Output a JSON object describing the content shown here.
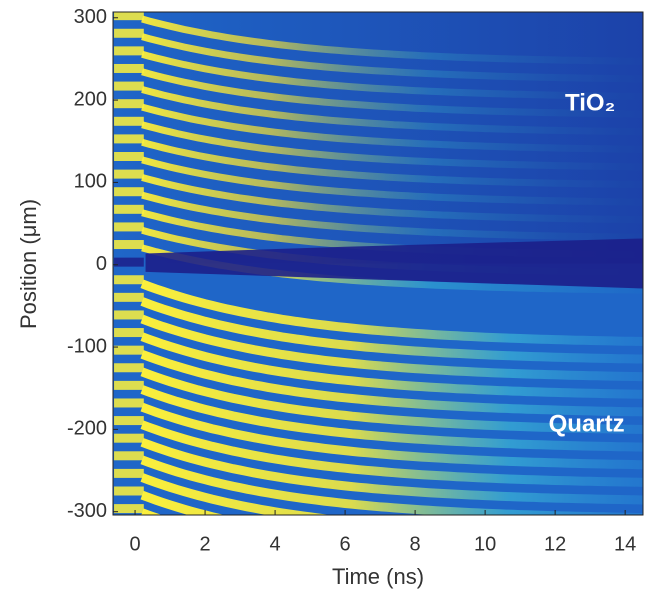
{
  "chart_data": {
    "type": "image",
    "xlabel": "Time (ns)",
    "ylabel": "Position (μm)",
    "xlim": [
      -0.63,
      14.51
    ],
    "xticks": [
      0,
      2,
      4,
      6,
      8,
      10,
      12,
      14
    ],
    "ylim": [
      -304,
      307
    ],
    "yticks": [
      -300,
      -200,
      -100,
      0,
      100,
      200,
      300
    ],
    "annotations": [
      {
        "text": "TiO₂",
        "x": 13,
        "y": 195
      },
      {
        "text": "Quartz",
        "x": 12.9,
        "y": -195
      }
    ]
  }
}
